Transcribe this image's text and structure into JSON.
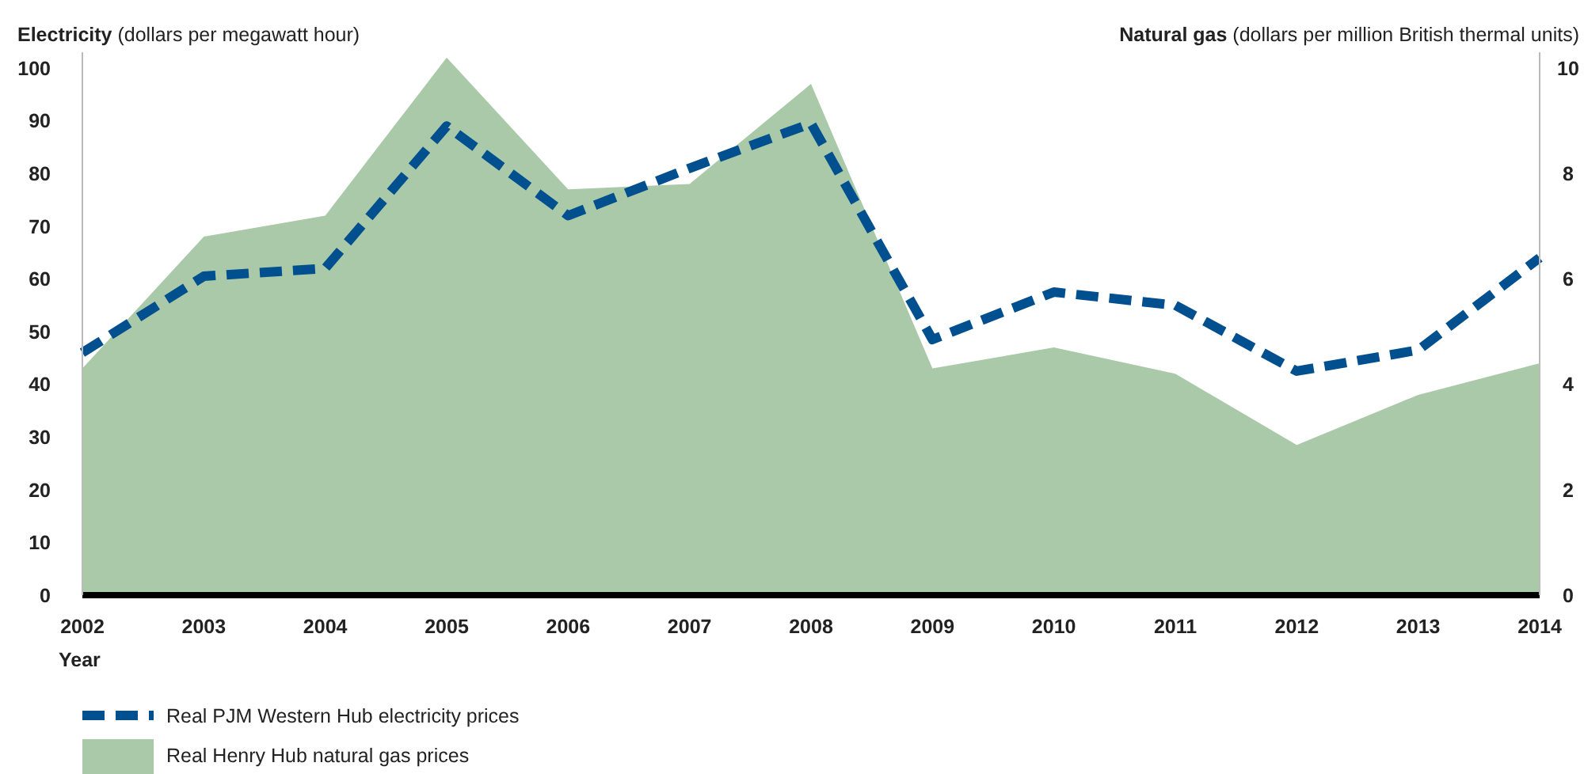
{
  "chart_data": {
    "type": "line",
    "categories": [
      "2002",
      "2003",
      "2004",
      "2005",
      "2006",
      "2007",
      "2008",
      "2009",
      "2010",
      "2011",
      "2012",
      "2013",
      "2014"
    ],
    "xlabel": "Year",
    "ylabel": "Electricity (dollars per megawatt hour)",
    "y2label": "Natural gas (dollars per million British thermal units)",
    "ylim": [
      0,
      103
    ],
    "yticks": [
      0,
      10,
      20,
      30,
      40,
      50,
      60,
      70,
      80,
      90,
      100
    ],
    "y2lim": [
      0,
      10.3
    ],
    "y2ticks": [
      0,
      2,
      4,
      6,
      8,
      10
    ],
    "series": [
      {
        "name": "Real Henry Hub natural gas prices",
        "type": "area",
        "axis": "y2",
        "color": "#aac9a8",
        "values": [
          4.3,
          6.8,
          7.2,
          10.2,
          7.7,
          7.8,
          9.7,
          4.3,
          4.7,
          4.2,
          2.85,
          3.8,
          4.4
        ]
      },
      {
        "name": "Real PJM Western Hub electricity prices",
        "line_style": "dashed",
        "color": "#004f8f",
        "values": [
          46,
          60.5,
          62,
          89,
          72,
          81,
          89.5,
          48.5,
          57.5,
          55,
          42.5,
          46.5,
          64
        ]
      }
    ],
    "grid": false,
    "legend": "bottom"
  }
}
